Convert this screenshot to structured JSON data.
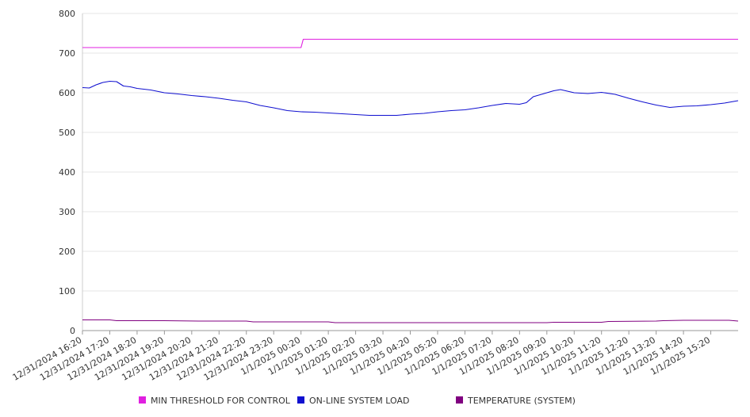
{
  "chart_data": {
    "type": "line",
    "title": "",
    "xlabel": "",
    "ylabel": "",
    "x_start": "12/31/2024 16:20",
    "x_end": "1/1/2025 16:20",
    "ylim": [
      0,
      800
    ],
    "yticks": [
      0,
      100,
      200,
      300,
      400,
      500,
      600,
      700,
      800
    ],
    "xtick_labels": [
      "12/31/2024 16:20",
      "12/31/2024 17:20",
      "12/31/2024 18:20",
      "12/31/2024 19:20",
      "12/31/2024 20:20",
      "12/31/2024 21:20",
      "12/31/2024 22:20",
      "12/31/2024 23:20",
      "1/1/2025 00:20",
      "1/1/2025 01:20",
      "1/1/2025 02:20",
      "1/1/2025 03:20",
      "1/1/2025 04:20",
      "1/1/2025 05:20",
      "1/1/2025 06:20",
      "1/1/2025 07:20",
      "1/1/2025 08:20",
      "1/1/2025 09:20",
      "1/1/2025 10:20",
      "1/1/2025 11:20",
      "1/1/2025 12:20",
      "1/1/2025 13:20",
      "1/1/2025 14:20",
      "1/1/2025 15:20"
    ],
    "grid": "horizontal",
    "legend_position": "bottom",
    "series": [
      {
        "name": "MIN THRESHOLD FOR CONTROL",
        "color": "#e020e0",
        "points": [
          [
            "12/31/2024 16:20",
            714
          ],
          [
            "12/31/2024 17:20",
            714
          ],
          [
            "12/31/2024 18:20",
            714
          ],
          [
            "12/31/2024 19:20",
            714
          ],
          [
            "12/31/2024 20:20",
            714
          ],
          [
            "12/31/2024 21:20",
            714
          ],
          [
            "12/31/2024 22:20",
            714
          ],
          [
            "12/31/2024 23:20",
            714
          ],
          [
            "1/1/2025 00:20",
            714
          ],
          [
            "1/1/2025 00:25",
            735
          ],
          [
            "1/1/2025 02:20",
            735
          ],
          [
            "1/1/2025 04:20",
            735
          ],
          [
            "1/1/2025 06:20",
            735
          ],
          [
            "1/1/2025 08:20",
            735
          ],
          [
            "1/1/2025 10:20",
            735
          ],
          [
            "1/1/2025 12:20",
            735
          ],
          [
            "1/1/2025 14:20",
            735
          ],
          [
            "1/1/2025 16:20",
            735
          ]
        ]
      },
      {
        "name": "ON-LINE SYSTEM LOAD",
        "color": "#1010d0",
        "points": [
          [
            "12/31/2024 16:20",
            613
          ],
          [
            "12/31/2024 16:35",
            612
          ],
          [
            "12/31/2024 16:50",
            620
          ],
          [
            "12/31/2024 17:05",
            626
          ],
          [
            "12/31/2024 17:20",
            629
          ],
          [
            "12/31/2024 17:35",
            628
          ],
          [
            "12/31/2024 17:50",
            617
          ],
          [
            "12/31/2024 18:05",
            615
          ],
          [
            "12/31/2024 18:20",
            611
          ],
          [
            "12/31/2024 18:50",
            607
          ],
          [
            "12/31/2024 19:20",
            600
          ],
          [
            "12/31/2024 19:50",
            597
          ],
          [
            "12/31/2024 20:20",
            593
          ],
          [
            "12/31/2024 20:50",
            590
          ],
          [
            "12/31/2024 21:20",
            586
          ],
          [
            "12/31/2024 21:50",
            581
          ],
          [
            "12/31/2024 22:20",
            577
          ],
          [
            "12/31/2024 22:50",
            568
          ],
          [
            "12/31/2024 23:20",
            562
          ],
          [
            "12/31/2024 23:50",
            555
          ],
          [
            "1/1/2025 00:20",
            552
          ],
          [
            "1/1/2025 00:50",
            551
          ],
          [
            "1/1/2025 01:20",
            549
          ],
          [
            "1/1/2025 01:50",
            547
          ],
          [
            "1/1/2025 02:20",
            545
          ],
          [
            "1/1/2025 02:50",
            543
          ],
          [
            "1/1/2025 03:20",
            543
          ],
          [
            "1/1/2025 03:50",
            543
          ],
          [
            "1/1/2025 04:20",
            546
          ],
          [
            "1/1/2025 04:50",
            548
          ],
          [
            "1/1/2025 05:20",
            552
          ],
          [
            "1/1/2025 05:50",
            555
          ],
          [
            "1/1/2025 06:20",
            557
          ],
          [
            "1/1/2025 06:50",
            562
          ],
          [
            "1/1/2025 07:20",
            568
          ],
          [
            "1/1/2025 07:50",
            573
          ],
          [
            "1/1/2025 08:20",
            571
          ],
          [
            "1/1/2025 08:35",
            575
          ],
          [
            "1/1/2025 08:50",
            590
          ],
          [
            "1/1/2025 09:20",
            600
          ],
          [
            "1/1/2025 09:35",
            605
          ],
          [
            "1/1/2025 09:50",
            608
          ],
          [
            "1/1/2025 10:05",
            604
          ],
          [
            "1/1/2025 10:20",
            600
          ],
          [
            "1/1/2025 10:50",
            598
          ],
          [
            "1/1/2025 11:20",
            601
          ],
          [
            "1/1/2025 11:50",
            596
          ],
          [
            "1/1/2025 12:20",
            586
          ],
          [
            "1/1/2025 12:50",
            577
          ],
          [
            "1/1/2025 13:20",
            569
          ],
          [
            "1/1/2025 13:50",
            563
          ],
          [
            "1/1/2025 14:20",
            566
          ],
          [
            "1/1/2025 14:50",
            567
          ],
          [
            "1/1/2025 15:20",
            570
          ],
          [
            "1/1/2025 15:50",
            574
          ],
          [
            "1/1/2025 16:20",
            580
          ]
        ]
      },
      {
        "name": "TEMPERATURE (SYSTEM)",
        "color": "#800080",
        "points": [
          [
            "12/31/2024 16:20",
            27
          ],
          [
            "12/31/2024 17:20",
            27
          ],
          [
            "12/31/2024 17:35",
            25
          ],
          [
            "12/31/2024 19:20",
            25
          ],
          [
            "12/31/2024 20:35",
            24
          ],
          [
            "12/31/2024 22:20",
            24
          ],
          [
            "12/31/2024 22:35",
            22
          ],
          [
            "1/1/2025 01:20",
            22
          ],
          [
            "1/1/2025 01:35",
            20
          ],
          [
            "1/1/2025 04:20",
            20
          ],
          [
            "1/1/2025 06:20",
            20
          ],
          [
            "1/1/2025 09:20",
            20
          ],
          [
            "1/1/2025 09:35",
            21
          ],
          [
            "1/1/2025 11:20",
            21
          ],
          [
            "1/1/2025 11:35",
            23
          ],
          [
            "1/1/2025 13:20",
            24
          ],
          [
            "1/1/2025 13:35",
            25
          ],
          [
            "1/1/2025 14:20",
            26
          ],
          [
            "1/1/2025 16:00",
            26
          ],
          [
            "1/1/2025 16:20",
            24
          ]
        ]
      }
    ]
  }
}
